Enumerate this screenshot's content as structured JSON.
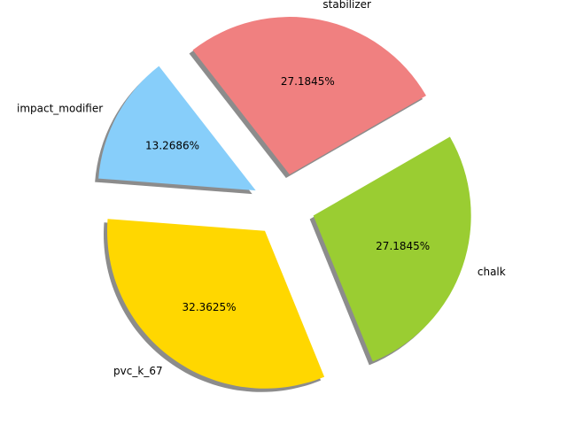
{
  "chart_data": {
    "type": "pie",
    "title": "",
    "slices": [
      {
        "label": "stabilizer",
        "value": 27.1845,
        "pct_text": "27.1845%",
        "color": "#F08080"
      },
      {
        "label": "impact_modifier",
        "value": 13.2686,
        "pct_text": "13.2686%",
        "color": "#87CEFA"
      },
      {
        "label": "pvc_k_67",
        "value": 32.3625,
        "pct_text": "32.3625%",
        "color": "#FFD700"
      },
      {
        "label": "chalk",
        "value": 27.1845,
        "pct_text": "27.1845%",
        "color": "#9ACD32"
      }
    ],
    "start_angle_deg": 30,
    "direction": "counterclockwise",
    "exploded": true,
    "shadow": true,
    "legend": "none"
  }
}
